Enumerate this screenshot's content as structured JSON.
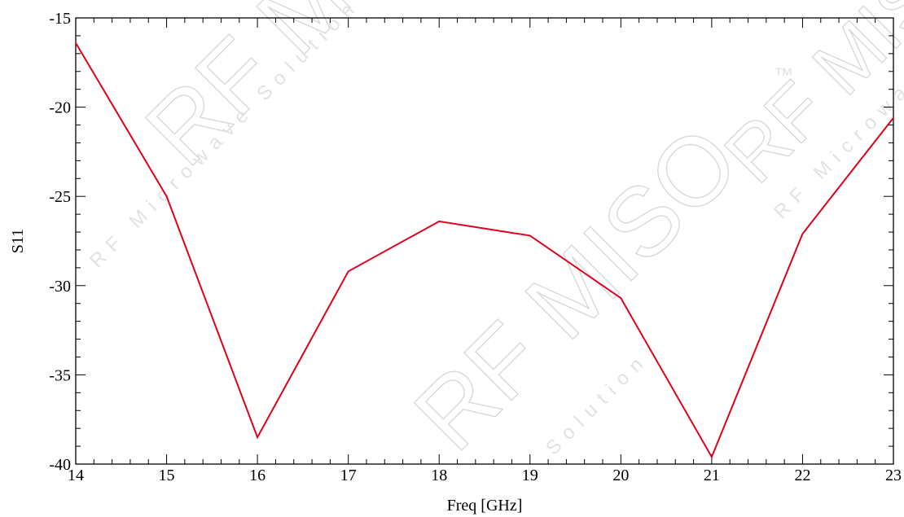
{
  "chart_data": {
    "type": "line",
    "title": "",
    "xlabel": "Freq [GHz]",
    "ylabel": "S11",
    "xlim": [
      14,
      23
    ],
    "ylim": [
      -40,
      -15
    ],
    "x_ticks": [
      "14",
      "15",
      "16",
      "17",
      "18",
      "19",
      "20",
      "21",
      "22",
      "23"
    ],
    "y_ticks": [
      "-15",
      "-20",
      "-25",
      "-30",
      "-35",
      "-40"
    ],
    "grid": false,
    "series": [
      {
        "color": "#e0001b",
        "x": [
          14,
          15,
          16,
          17,
          18,
          19,
          20,
          21,
          22,
          23
        ],
        "y": [
          -16.4,
          -25.0,
          -38.5,
          -29.2,
          -26.4,
          -27.2,
          -30.7,
          -39.6,
          -27.1,
          -20.6
        ]
      }
    ]
  },
  "watermark": {
    "brand": "RF MISO",
    "tagline": "RF Microwave Solution",
    "solution": "Solution",
    "trademark": "™"
  }
}
